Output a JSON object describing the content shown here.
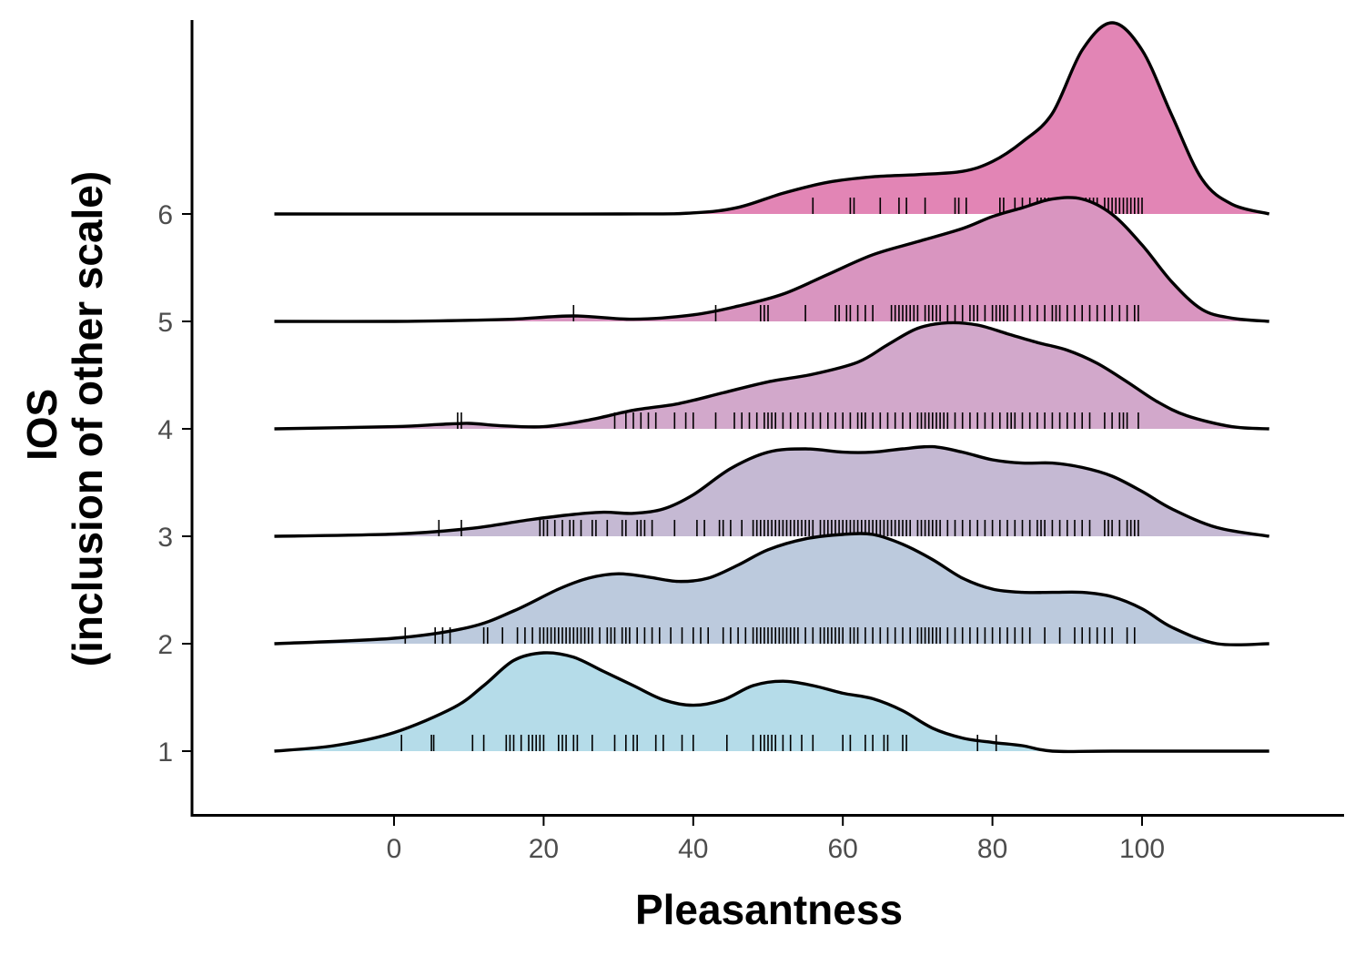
{
  "chart_data": {
    "type": "ridgeline",
    "title": "",
    "xlabel": "Pleasantness",
    "ylabel_lines": [
      "IOS",
      "(inclusion of other scale)"
    ],
    "xlim": [
      -16,
      117
    ],
    "x_ticks": [
      0,
      20,
      40,
      60,
      80,
      100
    ],
    "y_ticks": [
      1,
      2,
      3,
      4,
      5,
      6
    ],
    "grid": false,
    "legend": "none",
    "series": [
      {
        "category": "1",
        "color": "#b5dce9",
        "density_curve": [
          [
            -16,
            0
          ],
          [
            -8,
            0.05
          ],
          [
            0,
            0.17
          ],
          [
            8,
            0.4
          ],
          [
            12,
            0.6
          ],
          [
            16,
            0.83
          ],
          [
            20,
            0.9
          ],
          [
            24,
            0.86
          ],
          [
            28,
            0.73
          ],
          [
            32,
            0.6
          ],
          [
            36,
            0.47
          ],
          [
            40,
            0.42
          ],
          [
            44,
            0.47
          ],
          [
            48,
            0.6
          ],
          [
            52,
            0.64
          ],
          [
            56,
            0.6
          ],
          [
            60,
            0.53
          ],
          [
            64,
            0.48
          ],
          [
            68,
            0.37
          ],
          [
            72,
            0.21
          ],
          [
            76,
            0.12
          ],
          [
            80,
            0.08
          ],
          [
            84,
            0.05
          ],
          [
            88,
            0
          ],
          [
            96,
            0
          ],
          [
            117,
            0
          ]
        ],
        "rug": [
          1,
          5,
          5.3,
          10.5,
          12,
          15,
          15.5,
          16,
          17,
          18,
          18.5,
          19,
          19.5,
          20,
          22,
          22.5,
          23,
          24,
          24.5,
          26.5,
          29.5,
          31,
          32,
          32.5,
          35,
          36,
          38.5,
          40,
          44.5,
          48,
          49,
          49.5,
          50,
          50.5,
          51,
          52,
          53,
          54.5,
          56,
          60,
          61,
          63,
          64,
          65.5,
          66,
          68,
          68.5,
          78,
          80.5
        ]
      },
      {
        "category": "2",
        "color": "#bccadd",
        "density_curve": [
          [
            -16,
            0
          ],
          [
            0,
            0.05
          ],
          [
            10,
            0.15
          ],
          [
            16,
            0.3
          ],
          [
            22,
            0.5
          ],
          [
            26,
            0.6
          ],
          [
            30,
            0.64
          ],
          [
            34,
            0.61
          ],
          [
            38,
            0.57
          ],
          [
            42,
            0.6
          ],
          [
            46,
            0.72
          ],
          [
            50,
            0.86
          ],
          [
            55,
            0.96
          ],
          [
            60,
            1.0
          ],
          [
            64,
            1.0
          ],
          [
            68,
            0.91
          ],
          [
            72,
            0.77
          ],
          [
            76,
            0.6
          ],
          [
            80,
            0.5
          ],
          [
            84,
            0.47
          ],
          [
            88,
            0.47
          ],
          [
            92,
            0.47
          ],
          [
            96,
            0.43
          ],
          [
            100,
            0.32
          ],
          [
            104,
            0.15
          ],
          [
            110,
            0
          ],
          [
            117,
            0
          ]
        ],
        "rug": [
          1.5,
          5.5,
          6.5,
          7.5,
          12,
          12.5,
          14.5,
          16.5,
          17.5,
          18.5,
          19.5,
          20,
          20.5,
          21,
          21.5,
          22,
          22.5,
          23,
          23.5,
          24,
          24.5,
          25,
          25.5,
          26,
          26.5,
          27.5,
          28.5,
          29,
          29.5,
          30.5,
          31,
          31.5,
          32.5,
          33.5,
          34.5,
          35.5,
          37,
          38.5,
          40,
          41,
          42,
          44,
          45,
          46,
          47,
          48,
          48.5,
          49,
          49.5,
          50,
          50.5,
          51,
          51.5,
          52,
          52.5,
          53,
          53.5,
          54,
          55,
          56,
          57,
          57.5,
          58,
          58.5,
          59,
          59.5,
          60,
          61,
          61.5,
          62,
          63,
          64,
          65,
          66,
          67,
          68,
          69,
          70,
          70.5,
          71,
          71.5,
          72,
          72.5,
          73,
          74,
          75,
          76,
          77,
          78,
          79,
          80,
          81,
          82,
          83,
          84,
          85,
          87,
          89,
          91,
          92,
          93,
          94,
          95,
          96,
          98,
          99
        ]
      },
      {
        "category": "3",
        "color": "#c5b9d3",
        "density_curve": [
          [
            -16,
            0
          ],
          [
            0,
            0.02
          ],
          [
            10,
            0.07
          ],
          [
            18,
            0.15
          ],
          [
            24,
            0.2
          ],
          [
            28,
            0.22
          ],
          [
            32,
            0.21
          ],
          [
            36,
            0.25
          ],
          [
            40,
            0.38
          ],
          [
            45,
            0.62
          ],
          [
            50,
            0.77
          ],
          [
            55,
            0.8
          ],
          [
            60,
            0.77
          ],
          [
            64,
            0.77
          ],
          [
            68,
            0.8
          ],
          [
            72,
            0.82
          ],
          [
            76,
            0.77
          ],
          [
            80,
            0.7
          ],
          [
            84,
            0.67
          ],
          [
            88,
            0.67
          ],
          [
            92,
            0.63
          ],
          [
            96,
            0.55
          ],
          [
            100,
            0.41
          ],
          [
            104,
            0.25
          ],
          [
            110,
            0.08
          ],
          [
            117,
            0
          ]
        ],
        "rug": [
          6,
          9,
          19.5,
          20,
          20.5,
          21.5,
          22.5,
          23.5,
          24,
          25,
          26.5,
          27,
          28.5,
          30.5,
          31,
          32.5,
          33,
          33.5,
          34.5,
          37.5,
          40.5,
          41.5,
          43.5,
          44,
          45,
          46.5,
          48,
          48.5,
          49,
          49.5,
          50,
          50.5,
          51,
          51.5,
          52,
          52.5,
          53,
          53.5,
          54,
          54.5,
          55,
          55.5,
          56,
          57,
          57.5,
          58,
          58.5,
          59,
          59.5,
          60,
          60.5,
          61,
          61.5,
          62,
          62.5,
          63,
          63.5,
          64,
          64.5,
          65,
          65.5,
          66,
          66.5,
          67,
          67.5,
          68,
          68.5,
          69,
          70,
          70.5,
          71,
          71.5,
          72,
          72.5,
          73,
          74,
          75,
          76,
          77,
          78,
          79,
          80,
          81,
          82,
          83,
          84,
          85,
          86,
          86.5,
          87,
          88,
          89,
          90,
          91,
          92,
          93,
          95,
          95.5,
          96,
          97,
          98,
          98.5,
          99,
          99.5
        ]
      },
      {
        "category": "4",
        "color": "#d2a8cb",
        "density_curve": [
          [
            -16,
            0
          ],
          [
            0,
            0.02
          ],
          [
            6,
            0.04
          ],
          [
            10,
            0.05
          ],
          [
            14,
            0.03
          ],
          [
            20,
            0.02
          ],
          [
            26,
            0.08
          ],
          [
            32,
            0.17
          ],
          [
            38,
            0.23
          ],
          [
            44,
            0.33
          ],
          [
            50,
            0.43
          ],
          [
            56,
            0.5
          ],
          [
            62,
            0.61
          ],
          [
            66,
            0.77
          ],
          [
            70,
            0.92
          ],
          [
            74,
            0.97
          ],
          [
            78,
            0.95
          ],
          [
            82,
            0.87
          ],
          [
            86,
            0.79
          ],
          [
            90,
            0.72
          ],
          [
            94,
            0.6
          ],
          [
            98,
            0.43
          ],
          [
            102,
            0.25
          ],
          [
            106,
            0.12
          ],
          [
            112,
            0.02
          ],
          [
            117,
            0
          ]
        ],
        "rug": [
          8.5,
          9,
          29.5,
          31,
          32,
          33,
          34,
          35,
          37.5,
          39,
          40,
          43,
          45.5,
          46.5,
          47.5,
          48.5,
          49.5,
          50,
          50.5,
          51,
          52,
          53,
          54,
          55,
          56,
          57,
          58,
          59,
          60,
          61,
          62,
          62.5,
          63,
          64,
          65,
          66,
          67,
          68,
          69,
          70,
          70.5,
          71,
          71.5,
          72,
          72.5,
          73,
          73.5,
          74,
          75,
          76,
          77,
          78,
          79,
          80,
          81,
          82,
          82.5,
          83,
          84,
          85,
          86,
          87,
          88,
          89,
          90,
          91,
          92,
          93,
          95,
          96,
          97,
          97.5,
          98,
          99.5
        ]
      },
      {
        "category": "5",
        "color": "#d995c0",
        "density_curve": [
          [
            -16,
            0
          ],
          [
            0,
            0
          ],
          [
            10,
            0.01
          ],
          [
            16,
            0.02
          ],
          [
            24,
            0.05
          ],
          [
            32,
            0.02
          ],
          [
            40,
            0.06
          ],
          [
            46,
            0.14
          ],
          [
            52,
            0.25
          ],
          [
            58,
            0.43
          ],
          [
            64,
            0.61
          ],
          [
            70,
            0.73
          ],
          [
            76,
            0.85
          ],
          [
            80,
            0.96
          ],
          [
            84,
            1.04
          ],
          [
            88,
            1.12
          ],
          [
            92,
            1.12
          ],
          [
            96,
            0.98
          ],
          [
            100,
            0.7
          ],
          [
            104,
            0.36
          ],
          [
            108,
            0.11
          ],
          [
            112,
            0.03
          ],
          [
            117,
            0
          ]
        ],
        "rug": [
          24,
          43,
          49,
          49.5,
          50,
          55,
          59,
          59.5,
          60.5,
          61,
          62,
          63,
          64,
          66.5,
          67,
          67.5,
          68,
          68.5,
          69,
          69.5,
          70,
          71,
          71.5,
          72,
          72.5,
          73,
          74,
          75,
          76,
          77,
          77.5,
          78,
          79,
          80,
          80.5,
          81,
          81.5,
          82,
          83,
          84,
          85,
          86,
          87,
          88,
          88.5,
          89,
          90,
          91,
          92,
          93,
          94,
          95,
          96,
          97,
          98,
          99,
          99.5
        ]
      },
      {
        "category": "6",
        "color": "#e285b5",
        "density_curve": [
          [
            -16,
            0
          ],
          [
            30,
            0
          ],
          [
            40,
            0.01
          ],
          [
            46,
            0.06
          ],
          [
            52,
            0.19
          ],
          [
            58,
            0.29
          ],
          [
            64,
            0.34
          ],
          [
            70,
            0.36
          ],
          [
            76,
            0.39
          ],
          [
            80,
            0.48
          ],
          [
            84,
            0.66
          ],
          [
            88,
            0.92
          ],
          [
            92,
            1.5
          ],
          [
            96,
            1.75
          ],
          [
            100,
            1.5
          ],
          [
            104,
            0.9
          ],
          [
            108,
            0.32
          ],
          [
            112,
            0.09
          ],
          [
            117,
            0
          ]
        ],
        "rug": [
          56,
          61,
          61.5,
          65,
          67.5,
          68.5,
          71,
          75,
          75.5,
          76.5,
          81,
          81.5,
          83,
          84,
          85,
          86,
          86.5,
          87,
          87.5,
          88,
          88.5,
          89,
          89.5,
          90,
          90.5,
          91,
          91.5,
          92,
          92.5,
          93,
          93.5,
          94,
          95,
          95.5,
          96,
          96.5,
          97,
          97.5,
          98,
          98.5,
          99,
          99.5,
          100
        ]
      }
    ]
  }
}
